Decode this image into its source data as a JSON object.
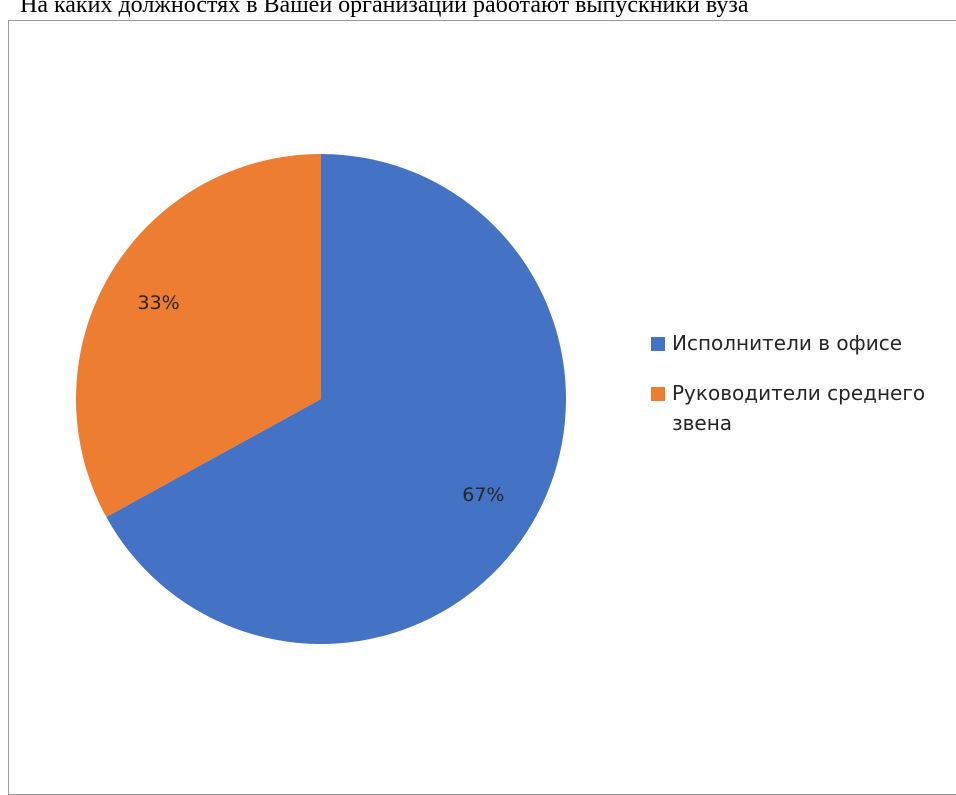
{
  "page": {
    "heading": "На каких должностях в Вашей организации работают выпускники вуза"
  },
  "chart_data": {
    "type": "pie",
    "title": "",
    "categories": [
      "Исполнители в офисе",
      "Руководители среднего звена"
    ],
    "values": [
      67,
      33
    ],
    "value_labels": [
      "67%",
      "33%"
    ],
    "colors": [
      "#4472C4",
      "#ED7D31"
    ],
    "legend_position": "right",
    "start_angle_deg": 0,
    "direction": "clockwise"
  }
}
